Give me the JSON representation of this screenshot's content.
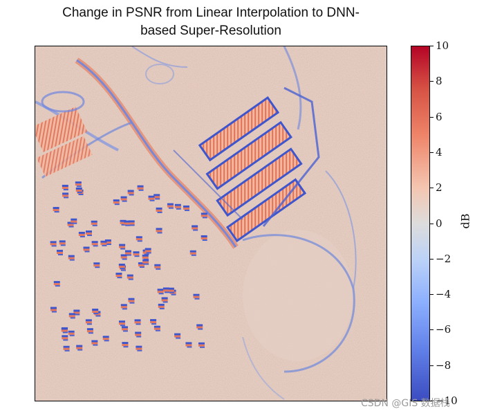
{
  "chart_data": {
    "type": "heatmap",
    "title_line1": "Change in PSNR from Linear Interpolation to DNN-",
    "title_line2": "based Super-Resolution",
    "colorbar": {
      "label": "dB",
      "min": -10,
      "max": 10,
      "ticks": [
        "10",
        "8",
        "6",
        "4",
        "2",
        "0",
        "−2",
        "−4",
        "−6",
        "−8",
        "−10"
      ],
      "colormap": "coolwarm",
      "colors": {
        "high": "#b40426",
        "mid": "#dddcdc",
        "low": "#3b4cc0"
      }
    }
  },
  "watermark": "CSDN @GIS 数据栈"
}
